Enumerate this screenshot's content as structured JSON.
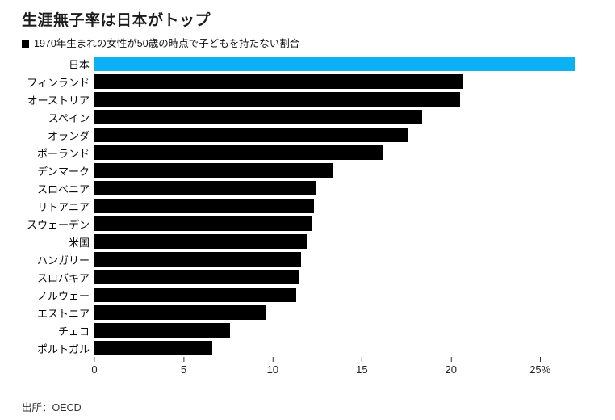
{
  "header": {
    "title": "生涯無子率は日本がトップ",
    "legend_label": "1970年生まれの女性が50歳の時点で子どもを持たない割合"
  },
  "chart_data": {
    "type": "bar",
    "orientation": "horizontal",
    "title": "生涯無子率は日本がトップ",
    "legend": [
      "1970年生まれの女性が50歳の時点で子どもを持たない割合"
    ],
    "categories": [
      "日本",
      "フィンランド",
      "オーストリア",
      "スペイン",
      "オランダ",
      "ポーランド",
      "デンマーク",
      "スロベニア",
      "リトアニア",
      "スウェーデン",
      "米国",
      "ハンガリー",
      "スロバキア",
      "ノルウェー",
      "エストニア",
      "チェコ",
      "ポルトガル"
    ],
    "values": [
      27.0,
      20.7,
      20.5,
      18.4,
      17.6,
      16.2,
      13.4,
      12.4,
      12.3,
      12.2,
      11.9,
      11.6,
      11.5,
      11.3,
      9.6,
      7.6,
      6.6
    ],
    "unit": "%",
    "highlight_index": 0,
    "highlight_color": "#0bb1f2",
    "bar_color": "#000000",
    "x_ticks": [
      0,
      5,
      10,
      15,
      20,
      25
    ],
    "x_tick_labels": [
      "0",
      "5",
      "10",
      "15",
      "20",
      "25%"
    ],
    "xlim": [
      0,
      29.2
    ],
    "grid": false,
    "legend_position": "top-left"
  },
  "footer": {
    "source": "出所：OECD"
  }
}
